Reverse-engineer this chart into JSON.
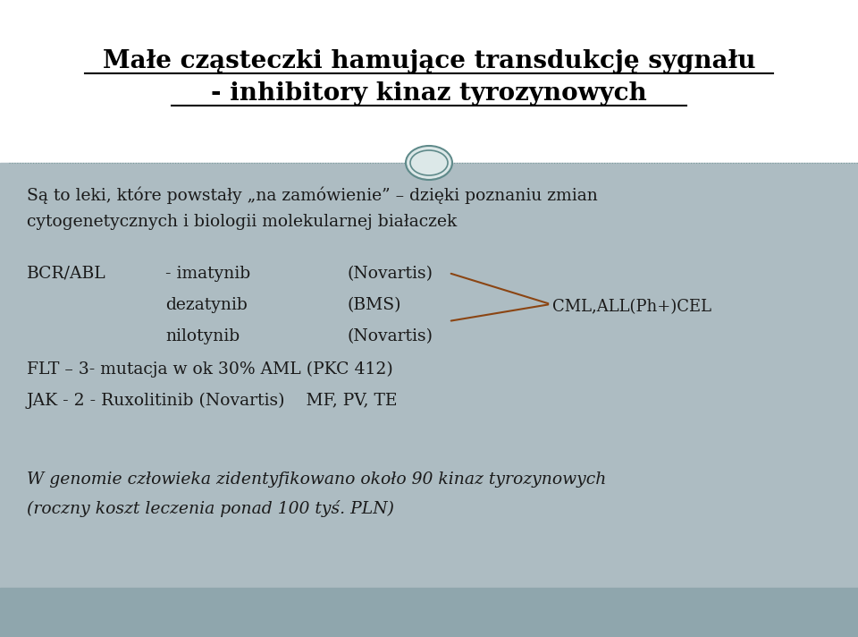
{
  "title_line1": "Małe cząsteczki hamujące transdukcję sygnału",
  "title_line2": "- inhibitory kinaz tyrozynowych",
  "bg_top": "#ffffff",
  "body_bg": "#adbcc2",
  "bottom_bg": "#8fa6ad",
  "title_color": "#000000",
  "divider_color": "#7a9a9a",
  "circle_color": "#5f8a8a",
  "circle_fill": "#dce8e8",
  "subtitle_line1": "Są to leki, które powstały „na zamówienie” – dzięki poznaniu zmian",
  "subtitle_line2": "cytogenetycznych i biologii molekularnej białaczek",
  "bcrabl": "BCR/ABL",
  "imatynib": "- imatynib",
  "novartis1": "(Novartis)",
  "dezatynib": "dezatynib",
  "bms": "(BMS)",
  "cml": "CML,ALL(Ph+)CEL",
  "nilotynib": "nilotynib",
  "novartis2": "(Novartis)",
  "flt": "FLT – 3- mutacja w ok 30% AML (PKC 412)",
  "jak": "JAK - 2 - Ruxolitinib (Novartis)    MF, PV, TE",
  "footer_line1": "W genomie człowieka zidentyfikowano około 90 kinaz tyrozynowych",
  "footer_line2": "(roczny koszt leczenia ponad 100 tyś. PLN)",
  "arrow_color": "#8b4513",
  "font_family": "serif",
  "text_color": "#1a1a1a"
}
